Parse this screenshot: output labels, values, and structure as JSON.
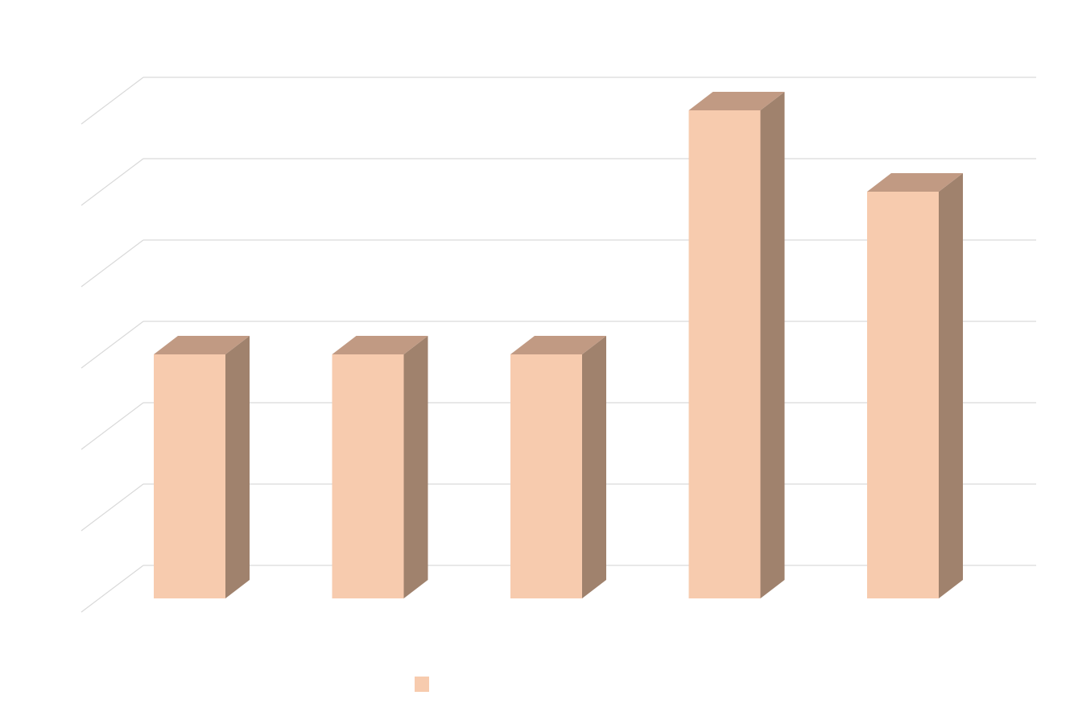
{
  "chart_data": {
    "type": "bar",
    "three_d": true,
    "categories": [
      "",
      "",
      "",
      "",
      ""
    ],
    "series": [
      {
        "name": "",
        "values": [
          3,
          3,
          3,
          6,
          5
        ]
      }
    ],
    "ylim": [
      0,
      6.4
    ],
    "gridline_step": 1,
    "grid": true,
    "legend": "bottom",
    "title": "",
    "xlabel": "",
    "ylabel": ""
  },
  "colors": {
    "bar_front": "#f7cbae",
    "bar_top": "#c19a83",
    "bar_side": "#a0826d",
    "gridline": "#d9d9d9"
  }
}
